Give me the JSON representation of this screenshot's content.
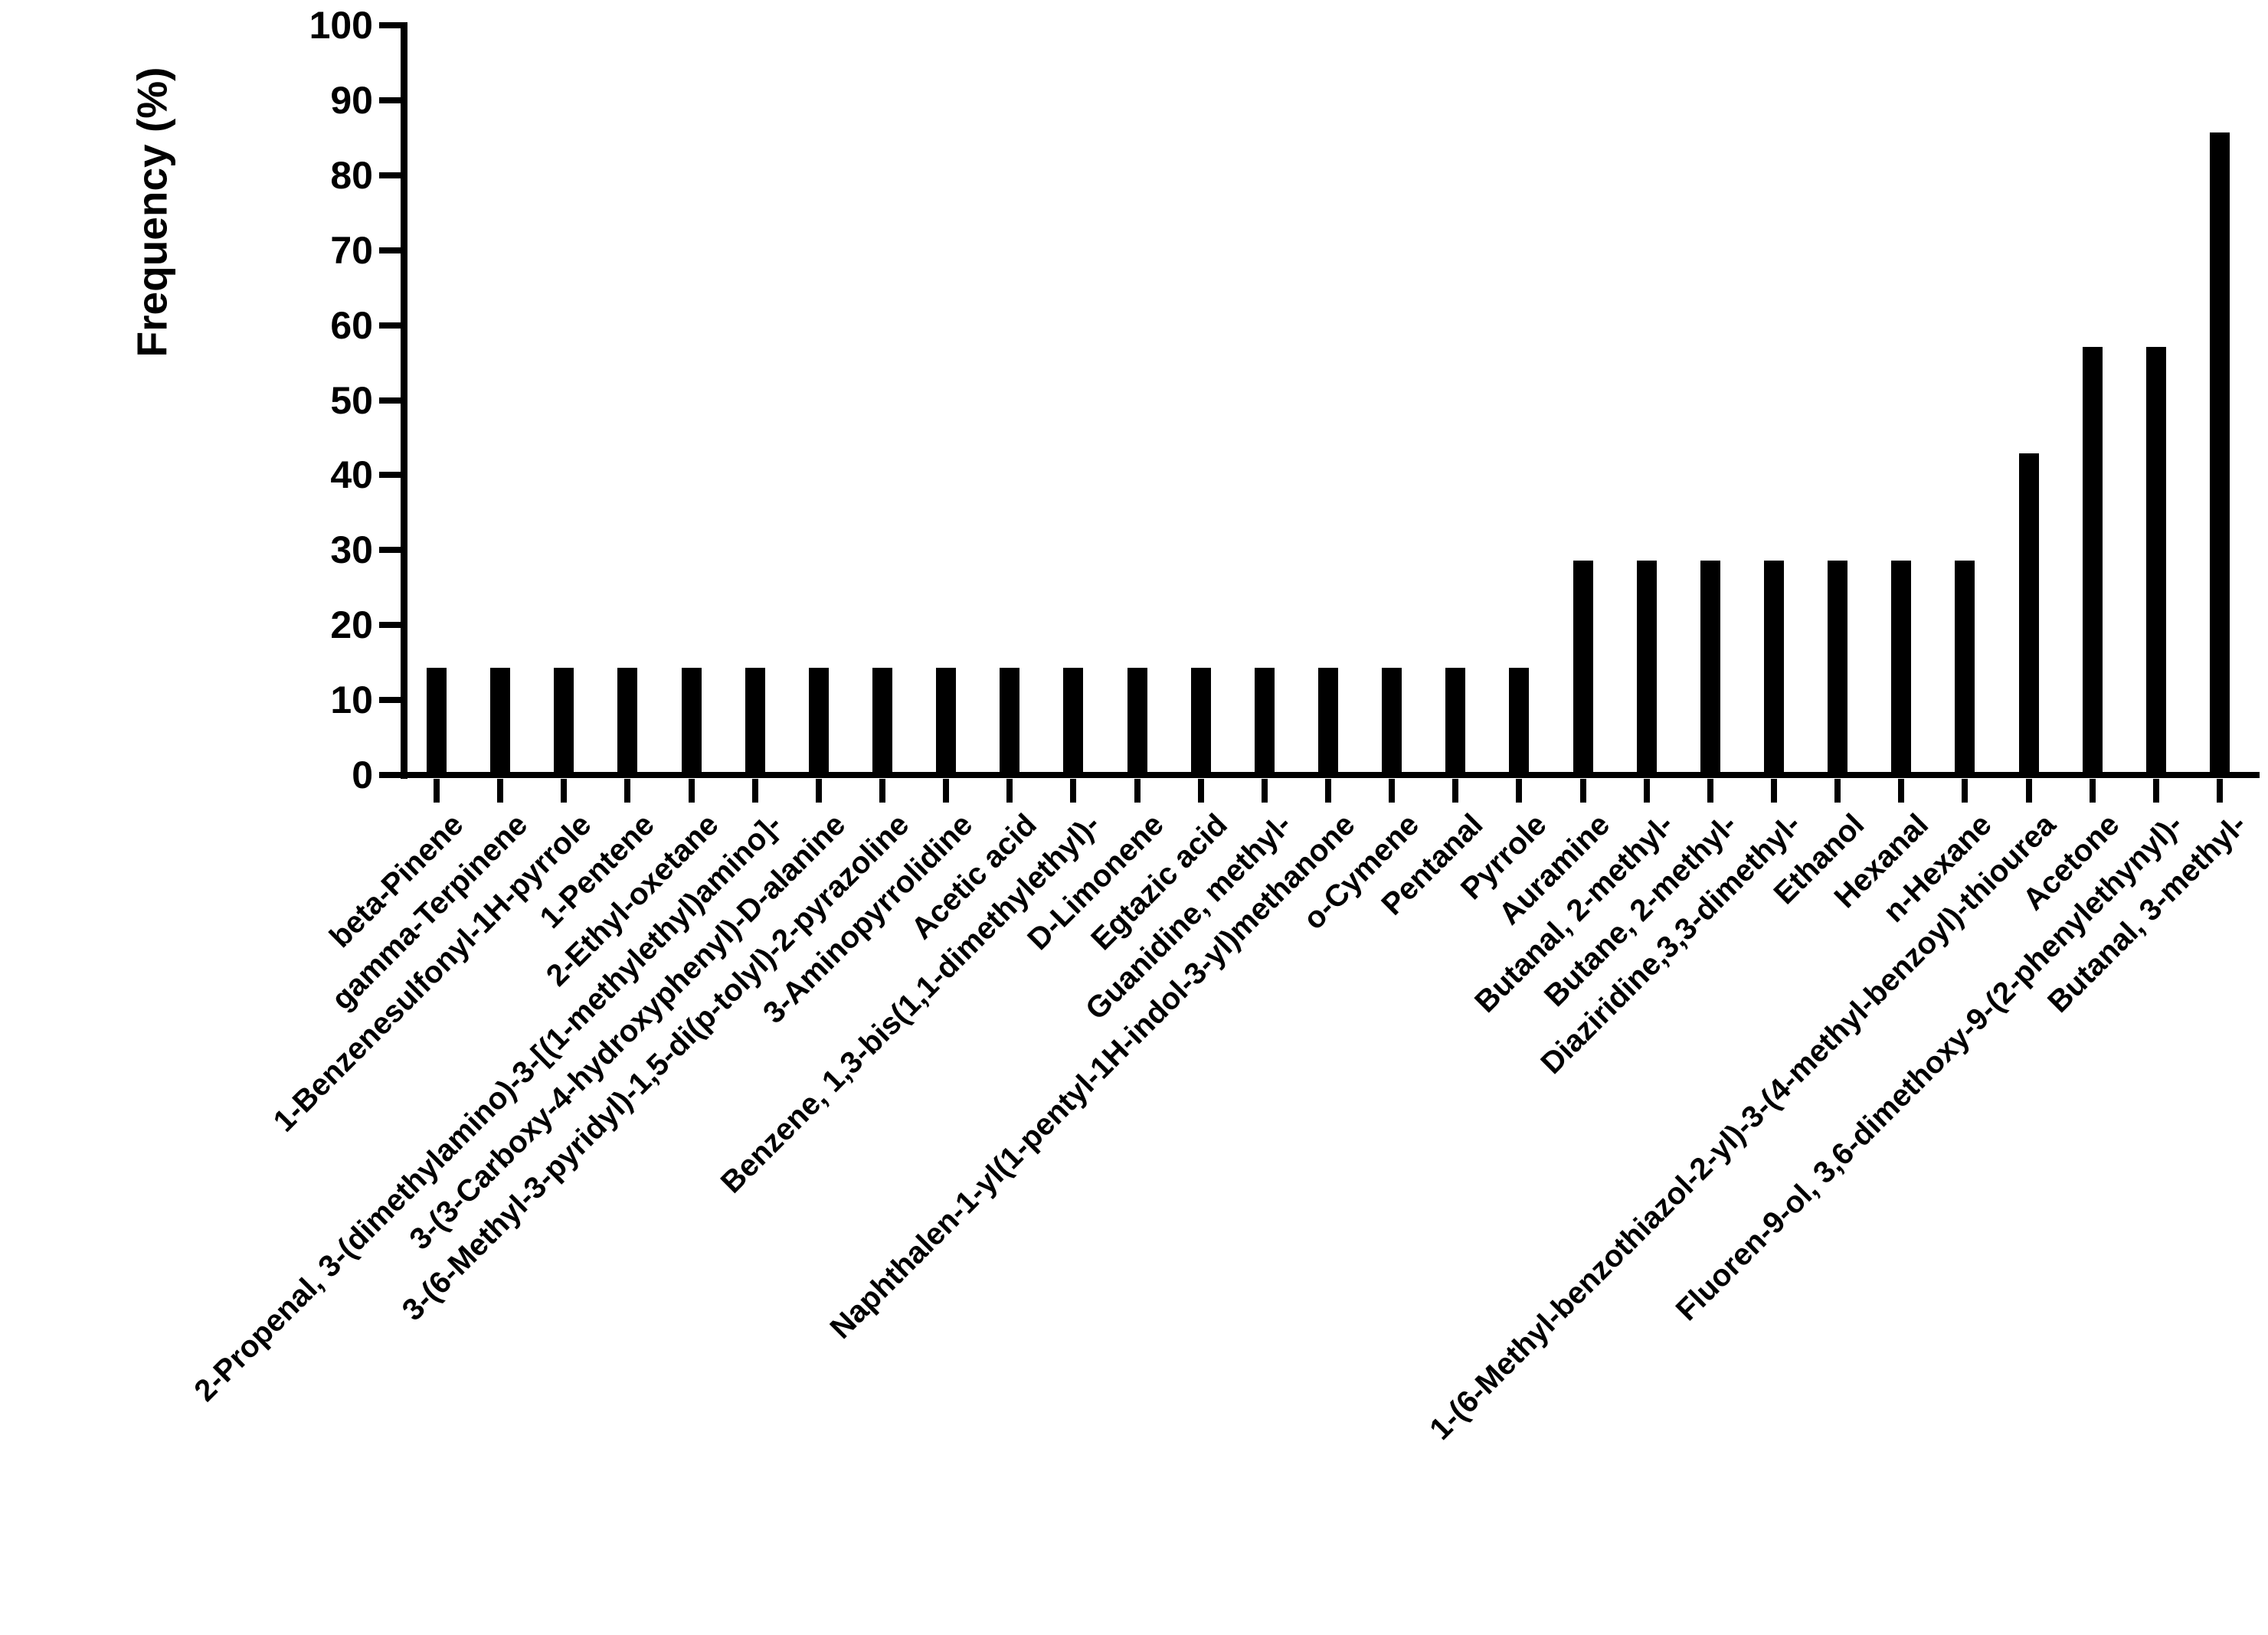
{
  "figure": {
    "background_color": "#ffffff",
    "bar_color": "#000000",
    "axis_color": "#000000",
    "text_color": "#000000"
  },
  "chart_data": {
    "type": "bar",
    "title": "",
    "xlabel": "",
    "ylabel": "Frequency (%)",
    "ylim": [
      0,
      100
    ],
    "yticks": [
      0,
      10,
      20,
      30,
      40,
      50,
      60,
      70,
      80,
      90,
      100
    ],
    "grid": "off",
    "legend": "none",
    "bar_orientation": "vertical",
    "x_tick_label_rotation_deg": 45,
    "categories": [
      "beta-Pinene",
      "gamma-Terpinene",
      "1-Benzenesulfonyl-1H-pyrrole",
      "1-Pentene",
      "2-Ethyl-oxetane",
      "2-Propenal, 3-(dimethylamino)-3-[(1-methylethyl)amino]-",
      "3-(3-Carboxy-4-hydroxyphenyl)-D-alanine",
      "3-(6-Methyl-3-pyridyl)-1,5-di(p-tolyl)-2-pyrazoline",
      "3-Aminopyrrolidine",
      "Acetic acid",
      "Benzene, 1,3-bis(1,1-dimethylethyl)-",
      "D-Limonene",
      "Egtazic acid",
      "Guanidine, methyl-",
      "Naphthalen-1-yl(1-pentyl-1H-indol-3-yl)methanone",
      "o-Cymene",
      "Pentanal",
      "Pyrrole",
      "Auramine",
      "Butanal, 2-methyl-",
      "Butane, 2-methyl-",
      "Diaziridine,3,3-dimethyl-",
      "Ethanol",
      "Hexanal",
      "n-Hexane",
      "1-(6-Methyl-benzothiazol-2-yl)-3-(4-methyl-benzoyl)-thiourea",
      "Acetone",
      "Fluoren-9-ol, 3,6-dimethoxy-9-(2-phenylethynyl)-",
      "Butanal, 3-methyl-"
    ],
    "values": [
      14.3,
      14.3,
      14.3,
      14.3,
      14.3,
      14.3,
      14.3,
      14.3,
      14.3,
      14.3,
      14.3,
      14.3,
      14.3,
      14.3,
      14.3,
      14.3,
      14.3,
      14.3,
      28.6,
      28.6,
      28.6,
      28.6,
      28.6,
      28.6,
      28.6,
      42.9,
      57.1,
      57.1,
      85.7
    ]
  }
}
